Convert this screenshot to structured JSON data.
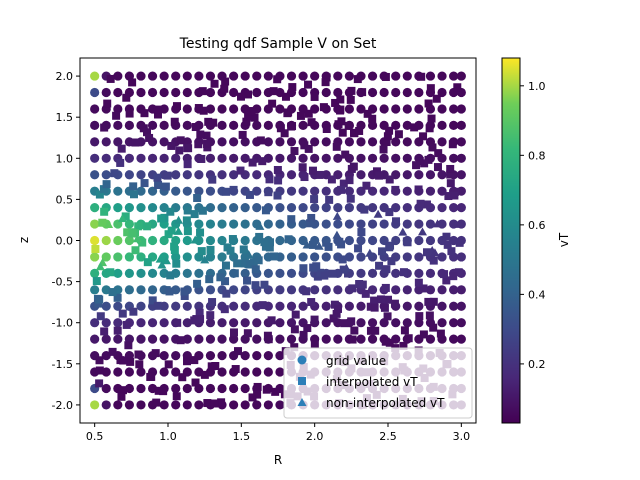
{
  "chart_data": {
    "type": "scatter",
    "title": "Testing qdf Sample V on Set",
    "xlabel": "R",
    "ylabel": "z",
    "xlim": [
      0.4,
      3.1
    ],
    "ylim": [
      -2.22,
      2.22
    ],
    "xticks": [
      "0.5",
      "1.0",
      "1.5",
      "2.0",
      "2.5",
      "3.0"
    ],
    "yticks": [
      "2.0",
      "1.5",
      "1.0",
      "0.5",
      "0.0",
      "-0.5",
      "-1.0",
      "-1.5",
      "-2.0"
    ],
    "grid": false,
    "legend_position": "lower-right",
    "colorbar": {
      "label": "vT",
      "cmap": "viridis",
      "range": [
        0.03,
        1.08
      ],
      "ticks": [
        "1.0",
        "0.8",
        "0.6",
        "0.4",
        "0.2"
      ]
    },
    "grid_r": [
      0.5,
      0.5789,
      0.6579,
      0.7368,
      0.8158,
      0.8947,
      0.9737,
      1.0526,
      1.1316,
      1.2105,
      1.2895,
      1.3684,
      1.4474,
      1.5263,
      1.6053,
      1.6842,
      1.7632,
      1.8421,
      1.9211,
      2.0,
      2.0789,
      2.1579,
      2.2368,
      2.3158,
      2.3947,
      2.4737,
      2.5526,
      2.6316,
      2.7105,
      2.7895,
      2.8684,
      2.9474,
      3.0
    ],
    "grid_z": [
      2.0,
      1.8,
      1.6,
      1.4,
      1.2,
      1.0,
      0.8,
      0.6,
      0.4,
      0.2,
      0.0,
      -0.2,
      -0.4,
      -0.6,
      -0.8,
      -1.0,
      -1.2,
      -1.4,
      -1.6,
      -1.8,
      -2.0
    ],
    "series": [
      {
        "name": "grid value",
        "marker": "circle",
        "count": 693
      },
      {
        "name": "interpolated vT",
        "marker": "square",
        "count": 420
      },
      {
        "name": "non-interpolated vT",
        "marker": "triangle",
        "count": 30
      }
    ],
    "vT_model": "value peaks near z = 0 and small R (about 1.05 at R 0.5, z 0 and the far corners at R 0.5, z ±2); falls to about 0.05 at large R and large |z|"
  }
}
